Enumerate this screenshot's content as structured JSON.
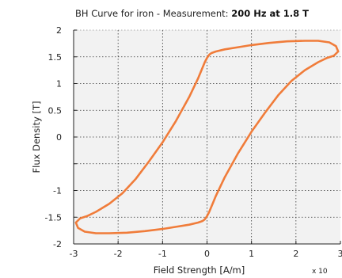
{
  "chart_data": {
    "type": "line",
    "title": "BH Curve for iron - Measurement:",
    "title_emphasis": "200 Hz at 1.8 T",
    "xlabel": "Field Strength [A/m]",
    "ylabel": "Flux Density [T]",
    "x_multiplier_label": "x 10",
    "xlim": [
      -3,
      3
    ],
    "ylim": [
      -2,
      2
    ],
    "x_ticks": [
      -3,
      -2,
      -1,
      0,
      1,
      2,
      3
    ],
    "x_tick_labels": [
      "-3",
      "-2",
      "-1",
      "0",
      "1",
      "2",
      "3"
    ],
    "y_ticks": [
      -2,
      -1.5,
      -1,
      -0.5,
      0,
      0.5,
      1,
      1.5,
      2
    ],
    "y_tick_labels": [
      "-2",
      "-1.5",
      "-1",
      "",
      "0",
      "0.5",
      "1",
      "1.5",
      "2"
    ],
    "grid": true,
    "grid_style": "dotted",
    "background_color": "#f2f2f2",
    "line_color": "#f07c3a",
    "series": [
      {
        "x": [
          2.95,
          2.9,
          2.75,
          2.5,
          2.2,
          1.8,
          1.4,
          1.0,
          0.7,
          0.4,
          0.2,
          0.1,
          0.05,
          0.0,
          -0.05,
          -0.1,
          -0.2,
          -0.4,
          -0.7,
          -1.0,
          -1.3,
          -1.6,
          -1.9,
          -2.2,
          -2.5,
          -2.7,
          -2.85,
          -2.95,
          -2.9,
          -2.75,
          -2.5,
          -2.2,
          -1.8,
          -1.4,
          -1.0,
          -0.7,
          -0.4,
          -0.2,
          -0.1,
          -0.05,
          0.0,
          0.05,
          0.1,
          0.2,
          0.4,
          0.7,
          1.0,
          1.3,
          1.6,
          1.9,
          2.2,
          2.5,
          2.7,
          2.85,
          2.95
        ],
        "y": [
          1.6,
          1.7,
          1.77,
          1.8,
          1.8,
          1.79,
          1.76,
          1.72,
          1.68,
          1.64,
          1.6,
          1.57,
          1.54,
          1.48,
          1.4,
          1.3,
          1.1,
          0.75,
          0.3,
          -0.1,
          -0.45,
          -0.78,
          -1.05,
          -1.25,
          -1.4,
          -1.48,
          -1.52,
          -1.6,
          -1.7,
          -1.77,
          -1.8,
          -1.8,
          -1.79,
          -1.76,
          -1.72,
          -1.68,
          -1.64,
          -1.6,
          -1.57,
          -1.54,
          -1.48,
          -1.4,
          -1.3,
          -1.1,
          -0.75,
          -0.3,
          0.1,
          0.45,
          0.78,
          1.05,
          1.25,
          1.4,
          1.48,
          1.52,
          1.6
        ]
      }
    ]
  }
}
